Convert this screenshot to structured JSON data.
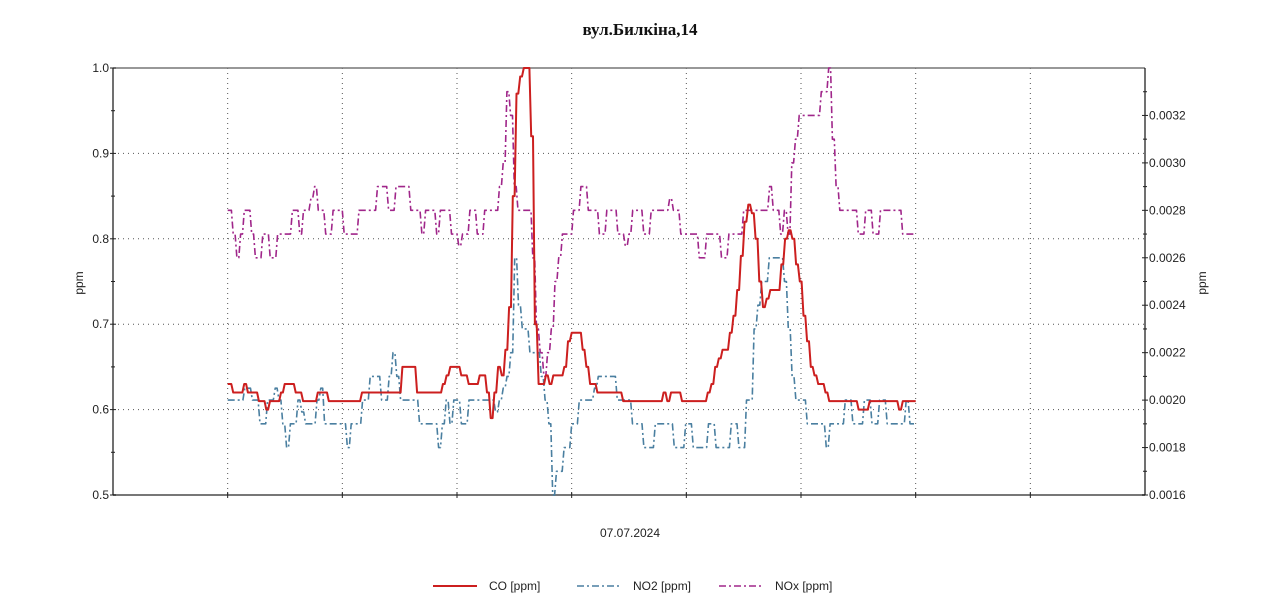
{
  "chart_data": {
    "type": "line",
    "title": "вул.Билкіна,14",
    "xlabel": "07.07.2024",
    "ylabel_left": "ppm",
    "ylabel_right": "ppm",
    "ylim_left": [
      0.5,
      1.0
    ],
    "ylim_right": [
      0.0016,
      0.0034
    ],
    "yticks_left": [
      "0.5",
      "0.6",
      "0.7",
      "0.8",
      "0.9",
      "1.0"
    ],
    "yticks_left_values": [
      0.5,
      0.6,
      0.7,
      0.8,
      0.9,
      1.0
    ],
    "yticks_right": [
      "0.0016",
      "0.0018",
      "0.0020",
      "0.0022",
      "0.0024",
      "0.0026",
      "0.0028",
      "0.0030",
      "0.0032"
    ],
    "yticks_right_values": [
      0.0016,
      0.0018,
      0.002,
      0.0022,
      0.0024,
      0.0026,
      0.0028,
      0.003,
      0.0032
    ],
    "x_gridlines": 9,
    "x_data_start_grid": 1,
    "x_data_end_grid": 7,
    "grid": true,
    "legend_position": "bottom",
    "colors": {
      "CO": "#cc1f1f",
      "NO2": "#4a7fa0",
      "NOx": "#a0268a"
    },
    "series": [
      {
        "name": "CO [ppm]",
        "axis": "left",
        "style": "solid",
        "values": [
          0.63,
          0.63,
          0.62,
          0.62,
          0.62,
          0.63,
          0.62,
          0.62,
          0.62,
          0.61,
          0.61,
          0.6,
          0.61,
          0.61,
          0.61,
          0.62,
          0.63,
          0.63,
          0.63,
          0.62,
          0.62,
          0.61,
          0.61,
          0.61,
          0.61,
          0.62,
          0.62,
          0.62,
          0.61,
          0.61,
          0.61,
          0.61,
          0.61,
          0.61,
          0.61,
          0.61,
          0.61,
          0.62,
          0.62,
          0.62,
          0.62,
          0.62,
          0.62,
          0.62,
          0.62,
          0.62,
          0.62,
          0.62,
          0.65,
          0.65,
          0.65,
          0.65,
          0.62,
          0.62,
          0.62,
          0.62,
          0.62,
          0.62,
          0.62,
          0.63,
          0.64,
          0.65,
          0.65,
          0.65,
          0.64,
          0.64,
          0.63,
          0.63,
          0.63,
          0.64,
          0.64,
          0.62,
          0.59,
          0.62,
          0.65,
          0.64,
          0.67,
          0.72,
          0.85,
          0.97,
          0.99,
          1.0,
          1.0,
          0.92,
          0.7,
          0.63,
          0.63,
          0.64,
          0.63,
          0.64,
          0.64,
          0.64,
          0.65,
          0.68,
          0.69,
          0.69,
          0.69,
          0.67,
          0.65,
          0.63,
          0.63,
          0.62,
          0.62,
          0.62,
          0.62,
          0.62,
          0.62,
          0.62,
          0.61,
          0.61,
          0.61,
          0.61,
          0.61,
          0.61,
          0.61,
          0.61,
          0.61,
          0.61,
          0.61,
          0.62,
          0.61,
          0.62,
          0.62,
          0.62,
          0.61,
          0.61,
          0.61,
          0.61,
          0.61,
          0.61,
          0.61,
          0.62,
          0.63,
          0.65,
          0.66,
          0.67,
          0.67,
          0.69,
          0.71,
          0.74,
          0.78,
          0.82,
          0.84,
          0.83,
          0.8,
          0.75,
          0.72,
          0.73,
          0.74,
          0.74,
          0.74,
          0.77,
          0.8,
          0.81,
          0.8,
          0.77,
          0.75,
          0.71,
          0.68,
          0.65,
          0.64,
          0.63,
          0.63,
          0.62,
          0.61,
          0.61,
          0.61,
          0.61,
          0.61,
          0.61,
          0.61,
          0.61,
          0.6,
          0.6,
          0.6,
          0.61,
          0.61,
          0.61,
          0.61,
          0.61,
          0.61,
          0.61,
          0.61,
          0.6,
          0.61,
          0.61,
          0.61,
          0.61
        ]
      },
      {
        "name": "NO2 [ppm]",
        "axis": "right",
        "style": "dashdot",
        "values": [
          0.002,
          0.002,
          0.002,
          0.002,
          0.002,
          0.00205,
          0.00205,
          0.002,
          0.002,
          0.0019,
          0.0019,
          0.002,
          0.002,
          0.00205,
          0.002,
          0.0019,
          0.0018,
          0.0019,
          0.0019,
          0.002,
          0.00195,
          0.0019,
          0.0019,
          0.0019,
          0.002,
          0.00205,
          0.0019,
          0.0019,
          0.0019,
          0.0019,
          0.0019,
          0.0019,
          0.0018,
          0.0019,
          0.0019,
          0.0019,
          0.002,
          0.002,
          0.0021,
          0.0021,
          0.0021,
          0.002,
          0.002,
          0.0021,
          0.0022,
          0.0021,
          0.002,
          0.002,
          0.002,
          0.002,
          0.002,
          0.0019,
          0.0019,
          0.0019,
          0.0019,
          0.0019,
          0.0018,
          0.0019,
          0.002,
          0.0019,
          0.002,
          0.002,
          0.0019,
          0.0019,
          0.002,
          0.002,
          0.002,
          0.002,
          0.002,
          0.002,
          0.002,
          0.00195,
          0.002,
          0.00205,
          0.0021,
          0.0022,
          0.0026,
          0.0024,
          0.0023,
          0.0023,
          0.0022,
          0.0022,
          0.0022,
          0.0021,
          0.002,
          0.0019,
          0.0016,
          0.0017,
          0.0017,
          0.0018,
          0.0018,
          0.0019,
          0.0019,
          0.002,
          0.002,
          0.002,
          0.002,
          0.00205,
          0.0021,
          0.0021,
          0.0021,
          0.0021,
          0.0021,
          0.002,
          0.002,
          0.002,
          0.002,
          0.0019,
          0.0019,
          0.0019,
          0.0018,
          0.0018,
          0.0018,
          0.0019,
          0.0019,
          0.0019,
          0.0019,
          0.0019,
          0.0018,
          0.0018,
          0.0018,
          0.0019,
          0.0019,
          0.0018,
          0.0018,
          0.0018,
          0.0018,
          0.0019,
          0.0019,
          0.0018,
          0.0018,
          0.0018,
          0.0018,
          0.0019,
          0.0019,
          0.0018,
          0.0018,
          0.002,
          0.002,
          0.0023,
          0.0024,
          0.0025,
          0.0025,
          0.0026,
          0.0026,
          0.0026,
          0.0026,
          0.0025,
          0.0023,
          0.0021,
          0.002,
          0.002,
          0.002,
          0.0019,
          0.0019,
          0.0019,
          0.0019,
          0.0019,
          0.0018,
          0.0019,
          0.0019,
          0.0019,
          0.0019,
          0.002,
          0.002,
          0.0019,
          0.0019,
          0.0019,
          0.002,
          0.002,
          0.0019,
          0.0019,
          0.002,
          0.002,
          0.0019,
          0.0019,
          0.0019,
          0.0019,
          0.0019,
          0.002,
          0.0019,
          0.0019
        ]
      },
      {
        "name": "NOx [ppm]",
        "axis": "right",
        "style": "dashdot",
        "values": [
          0.0028,
          0.0028,
          0.0027,
          0.0026,
          0.0027,
          0.0028,
          0.0028,
          0.0027,
          0.0026,
          0.0026,
          0.0027,
          0.0027,
          0.0026,
          0.0026,
          0.0027,
          0.0027,
          0.0027,
          0.0027,
          0.0028,
          0.0028,
          0.0027,
          0.0028,
          0.0028,
          0.00285,
          0.0029,
          0.0028,
          0.0028,
          0.0027,
          0.0027,
          0.0028,
          0.0028,
          0.0028,
          0.0027,
          0.0027,
          0.0027,
          0.0027,
          0.0028,
          0.0028,
          0.0028,
          0.0028,
          0.0028,
          0.0029,
          0.0029,
          0.0029,
          0.0028,
          0.0028,
          0.0029,
          0.0029,
          0.0029,
          0.0029,
          0.0028,
          0.0028,
          0.0028,
          0.0027,
          0.0028,
          0.0028,
          0.0028,
          0.0027,
          0.0028,
          0.0028,
          0.0028,
          0.0027,
          0.0027,
          0.00265,
          0.0027,
          0.0027,
          0.0028,
          0.0028,
          0.0027,
          0.0027,
          0.0028,
          0.0028,
          0.0028,
          0.0028,
          0.0029,
          0.003,
          0.0033,
          0.0032,
          0.0029,
          0.0028,
          0.0028,
          0.0028,
          0.0028,
          0.0026,
          0.0023,
          0.0022,
          0.0021,
          0.0022,
          0.0023,
          0.0025,
          0.0026,
          0.0027,
          0.0027,
          0.0027,
          0.0028,
          0.0028,
          0.0029,
          0.0029,
          0.0028,
          0.0028,
          0.0028,
          0.0027,
          0.0027,
          0.0028,
          0.0028,
          0.0028,
          0.0027,
          0.0027,
          0.00265,
          0.0027,
          0.0028,
          0.0028,
          0.0028,
          0.0027,
          0.0027,
          0.0028,
          0.0028,
          0.0028,
          0.0028,
          0.0028,
          0.00285,
          0.0028,
          0.0028,
          0.0027,
          0.0027,
          0.0027,
          0.0027,
          0.0027,
          0.0026,
          0.0026,
          0.0027,
          0.0027,
          0.0027,
          0.0027,
          0.0026,
          0.0026,
          0.0027,
          0.0027,
          0.0027,
          0.0027,
          0.0028,
          0.0028,
          0.0028,
          0.0028,
          0.0028,
          0.0028,
          0.0028,
          0.0029,
          0.0028,
          0.0028,
          0.0027,
          0.0028,
          0.0027,
          0.003,
          0.0031,
          0.0032,
          0.0032,
          0.0032,
          0.0032,
          0.0032,
          0.0032,
          0.0033,
          0.0033,
          0.0034,
          0.0031,
          0.0029,
          0.0028,
          0.0028,
          0.0028,
          0.0028,
          0.0028,
          0.0027,
          0.0027,
          0.0028,
          0.0028,
          0.0027,
          0.0027,
          0.0028,
          0.0028,
          0.0028,
          0.0028,
          0.0028,
          0.0028,
          0.0027,
          0.0027,
          0.0027,
          0.0027
        ]
      }
    ]
  }
}
